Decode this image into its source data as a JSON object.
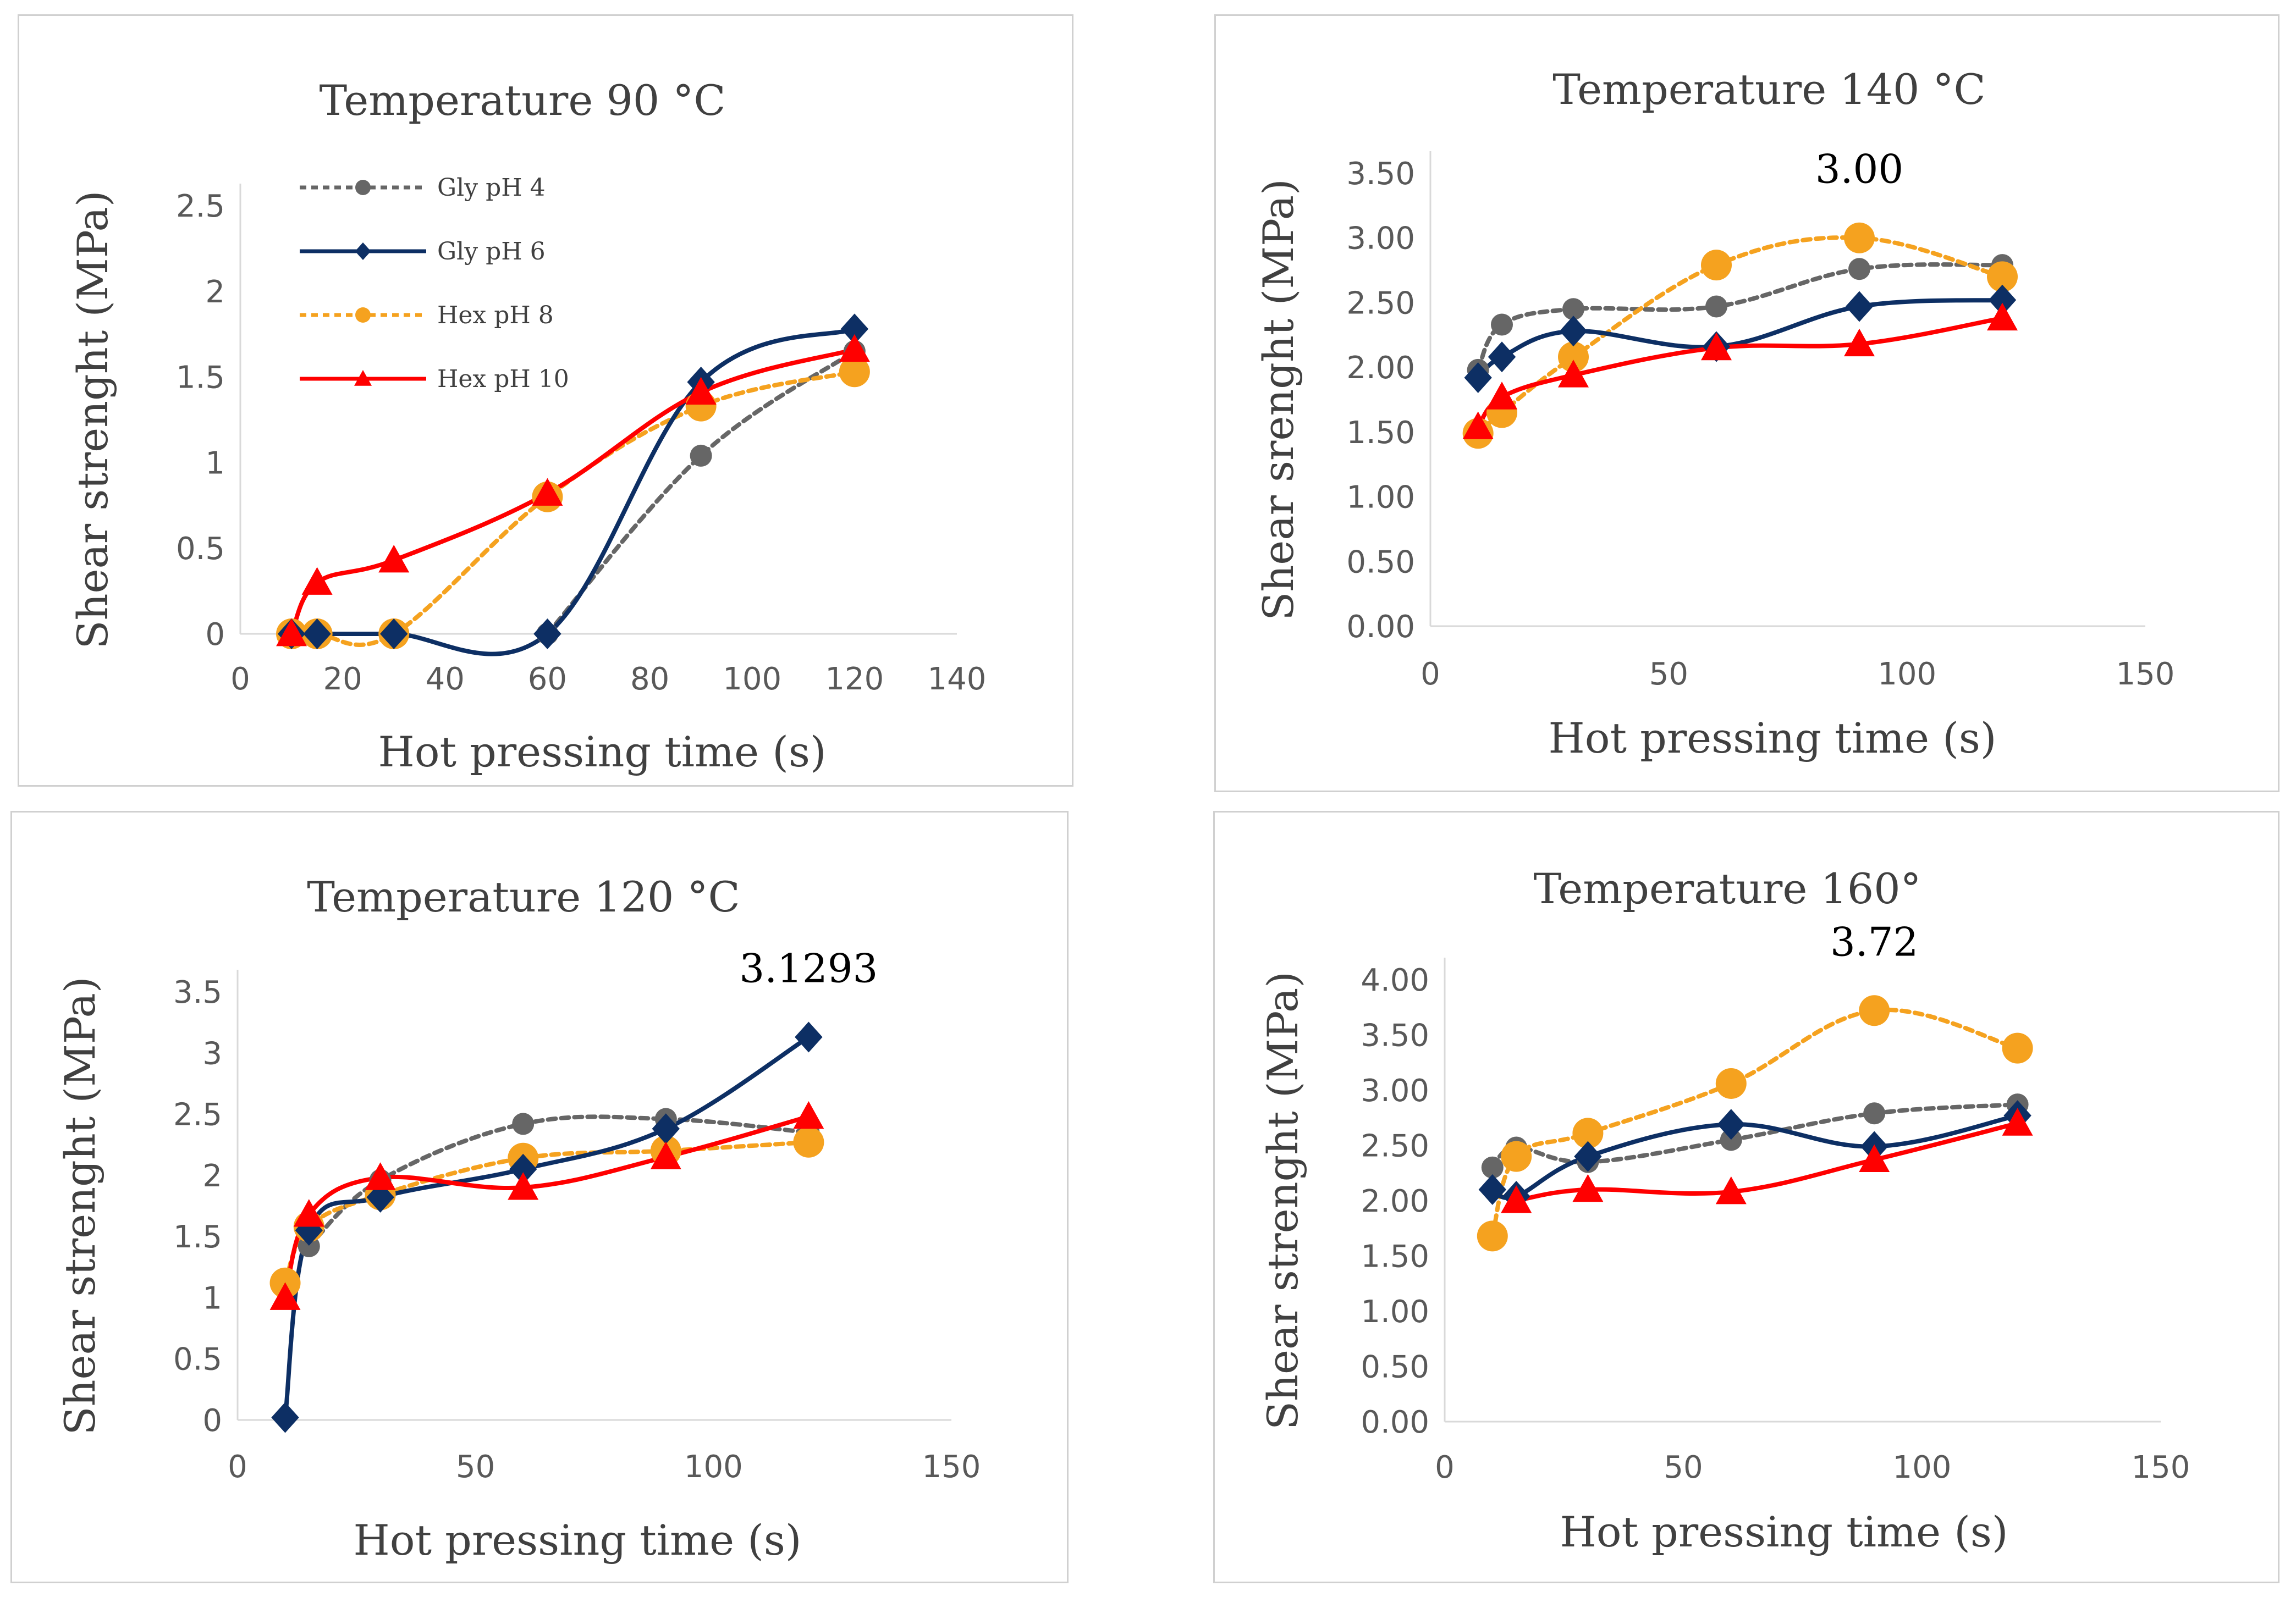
{
  "colors": {
    "gly_ph4": "#666666",
    "gly_ph6": "#0d2f64",
    "hex_ph8": "#f5a21f",
    "hex_ph10": "#ff0000"
  },
  "legend": [
    "Gly pH 4",
    "Gly pH 6",
    "Hex pH 8",
    "Hex pH 10"
  ],
  "chart_data": [
    {
      "type": "line",
      "title": "Temperature 90 °C",
      "xlabel": "Hot pressing time (s)",
      "ylabel": "Shear strenght (MPa)",
      "xlim": [
        0,
        140
      ],
      "ylim": [
        0,
        2.5
      ],
      "xticks": [
        "0",
        "20",
        "40",
        "60",
        "80",
        "100",
        "120",
        "140"
      ],
      "yticks": [
        "0",
        "0.5",
        "1",
        "1.5",
        "2",
        "2.5"
      ],
      "annotation": null,
      "series": [
        {
          "name": "Gly pH 4",
          "x": [
            60,
            90,
            120
          ],
          "y": [
            0,
            1.04,
            1.65
          ]
        },
        {
          "name": "Gly pH 6",
          "x": [
            10,
            15,
            30,
            60,
            90,
            120
          ],
          "y": [
            0,
            0,
            0,
            0,
            1.47,
            1.78
          ]
        },
        {
          "name": "Hex pH 8",
          "x": [
            10,
            15,
            30,
            60,
            90,
            120
          ],
          "y": [
            0,
            0,
            0,
            0.8,
            1.33,
            1.53
          ]
        },
        {
          "name": "Hex pH 10",
          "x": [
            10,
            15,
            30,
            60,
            90,
            120
          ],
          "y": [
            0,
            0.3,
            0.43,
            0.82,
            1.41,
            1.66
          ]
        }
      ]
    },
    {
      "type": "line",
      "title": "Temperature 140 °C",
      "xlabel": "Hot pressing time (s)",
      "ylabel": "Shear srenght (MPa)",
      "xlim": [
        0,
        150
      ],
      "ylim": [
        0,
        3.5
      ],
      "xticks": [
        "0",
        "50",
        "100",
        "150"
      ],
      "yticks": [
        "0.00",
        "0.50",
        "1.00",
        "1.50",
        "2.00",
        "2.50",
        "3.00",
        "3.50"
      ],
      "annotation": {
        "text": "3.00",
        "series": "Hex pH 8",
        "x": 90,
        "y": 3.0
      },
      "series": [
        {
          "name": "Gly pH 4",
          "x": [
            10,
            15,
            30,
            60,
            90,
            120
          ],
          "y": [
            1.98,
            2.33,
            2.45,
            2.47,
            2.76,
            2.79
          ]
        },
        {
          "name": "Gly pH 6",
          "x": [
            10,
            15,
            30,
            60,
            90,
            120
          ],
          "y": [
            1.92,
            2.08,
            2.28,
            2.16,
            2.47,
            2.52
          ]
        },
        {
          "name": "Hex pH 8",
          "x": [
            10,
            15,
            30,
            60,
            90,
            120
          ],
          "y": [
            1.49,
            1.65,
            2.08,
            2.79,
            3.0,
            2.7
          ]
        },
        {
          "name": "Hex pH 10",
          "x": [
            10,
            15,
            30,
            60,
            90,
            120
          ],
          "y": [
            1.54,
            1.77,
            1.94,
            2.15,
            2.18,
            2.38
          ]
        }
      ]
    },
    {
      "type": "line",
      "title": "Temperature 120 °C",
      "xlabel": "Hot pressing time (s)",
      "ylabel": "Shear strenght (MPa)",
      "xlim": [
        0,
        150
      ],
      "ylim": [
        0,
        3.5
      ],
      "xticks": [
        "0",
        "50",
        "100",
        "150"
      ],
      "yticks": [
        "0",
        "0.5",
        "1",
        "1.5",
        "2",
        "2.5",
        "3",
        "3.5"
      ],
      "annotation": {
        "text": "3.1293",
        "series": "Gly pH 6",
        "x": 120,
        "y": 3.1293
      },
      "series": [
        {
          "name": "Gly pH 4",
          "x": [
            15,
            30,
            60,
            90,
            120
          ],
          "y": [
            1.42,
            1.96,
            2.42,
            2.46,
            2.35
          ]
        },
        {
          "name": "Gly pH 6",
          "x": [
            10,
            15,
            30,
            60,
            90,
            120
          ],
          "y": [
            0.02,
            1.55,
            1.82,
            2.05,
            2.38,
            3.1293
          ]
        },
        {
          "name": "Hex pH 8",
          "x": [
            10,
            15,
            30,
            60,
            90,
            120
          ],
          "y": [
            1.12,
            1.58,
            1.84,
            2.14,
            2.2,
            2.27
          ]
        },
        {
          "name": "Hex pH 10",
          "x": [
            10,
            15,
            30,
            60,
            90,
            120
          ],
          "y": [
            1.0,
            1.68,
            1.98,
            1.9,
            2.15,
            2.48
          ]
        }
      ]
    },
    {
      "type": "line",
      "title": "Temperature 160°",
      "xlabel": "Hot pressing time (s)",
      "ylabel": "Shear strenght (MPa)",
      "xlim": [
        0,
        150
      ],
      "ylim": [
        0,
        4.0
      ],
      "xticks": [
        "0",
        "50",
        "100",
        "150"
      ],
      "yticks": [
        "0.00",
        "0.50",
        "1.00",
        "1.50",
        "2.00",
        "2.50",
        "3.00",
        "3.50",
        "4.00"
      ],
      "annotation": {
        "text": "3.72",
        "series": "Hex pH 8",
        "x": 90,
        "y": 3.72
      },
      "series": [
        {
          "name": "Gly pH 4",
          "x": [
            10,
            15,
            30,
            60,
            90,
            120
          ],
          "y": [
            2.3,
            2.48,
            2.35,
            2.55,
            2.79,
            2.87
          ]
        },
        {
          "name": "Gly pH 6",
          "x": [
            10,
            15,
            30,
            60,
            90,
            120
          ],
          "y": [
            2.1,
            2.04,
            2.4,
            2.69,
            2.49,
            2.77
          ]
        },
        {
          "name": "Hex pH 8",
          "x": [
            10,
            15,
            30,
            60,
            90,
            120
          ],
          "y": [
            1.68,
            2.4,
            2.61,
            3.06,
            3.72,
            3.38
          ]
        },
        {
          "name": "Hex pH 10",
          "x": [
            15,
            30,
            60,
            90,
            120
          ],
          "y": [
            2.0,
            2.1,
            2.08,
            2.37,
            2.7
          ]
        }
      ]
    }
  ]
}
